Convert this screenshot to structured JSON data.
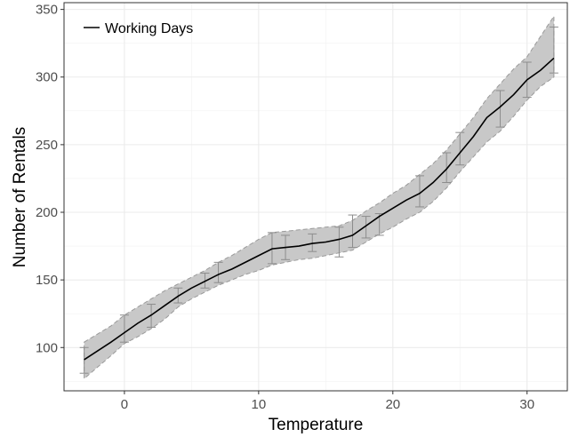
{
  "chart_data": {
    "type": "line",
    "xlabel": "Temperature",
    "ylabel": "Number of Rentals",
    "xlim": [
      -4.5,
      33
    ],
    "ylim": [
      68,
      355
    ],
    "x_ticks": [
      0,
      10,
      20,
      30
    ],
    "y_ticks": [
      100,
      150,
      200,
      250,
      300,
      350
    ],
    "grid": true,
    "legend_position": "top-left",
    "series": [
      {
        "name": "Working Days",
        "color": "#000000",
        "x": [
          -3,
          -1,
          0,
          1,
          2,
          3,
          4,
          5,
          6,
          7,
          8,
          9,
          10,
          11,
          12,
          13,
          14,
          15,
          16,
          17,
          18,
          19,
          20,
          21,
          22,
          23,
          24,
          25,
          26,
          27,
          28,
          29,
          30,
          31,
          32
        ],
        "y": [
          91,
          104,
          111,
          118,
          124,
          131,
          138,
          144,
          149,
          154,
          158,
          163,
          168,
          173,
          174,
          175,
          177,
          178,
          180,
          183,
          190,
          197,
          203,
          209,
          214,
          222,
          232,
          244,
          256,
          270,
          278,
          287,
          298,
          305,
          314
        ],
        "band_lower": [
          77,
          94,
          103,
          108,
          114,
          121,
          130,
          136,
          141,
          146,
          150,
          154,
          157,
          161,
          163,
          165,
          166,
          168,
          170,
          172,
          178,
          184,
          189,
          195,
          200,
          208,
          218,
          230,
          241,
          252,
          260,
          271,
          283,
          293,
          300
        ],
        "band_upper": [
          104,
          116,
          124,
          130,
          136,
          142,
          147,
          152,
          157,
          163,
          168,
          174,
          180,
          185,
          186,
          187,
          188,
          189,
          190,
          194,
          201,
          207,
          214,
          220,
          228,
          236,
          246,
          258,
          270,
          284,
          295,
          306,
          315,
          330,
          345
        ],
        "error_bars": [
          {
            "x": -3,
            "lo": 81,
            "hi": 100
          },
          {
            "x": 0,
            "lo": 104,
            "hi": 124
          },
          {
            "x": 2,
            "lo": 115,
            "hi": 132
          },
          {
            "x": 4,
            "lo": 133,
            "hi": 144
          },
          {
            "x": 6,
            "lo": 144,
            "hi": 155
          },
          {
            "x": 7,
            "lo": 148,
            "hi": 163
          },
          {
            "x": 11,
            "lo": 162,
            "hi": 185
          },
          {
            "x": 12,
            "lo": 165,
            "hi": 183
          },
          {
            "x": 14,
            "lo": 171,
            "hi": 184
          },
          {
            "x": 16,
            "lo": 167,
            "hi": 189
          },
          {
            "x": 17,
            "lo": 174,
            "hi": 198
          },
          {
            "x": 18,
            "lo": 181,
            "hi": 197
          },
          {
            "x": 19,
            "lo": 183,
            "hi": 199
          },
          {
            "x": 22,
            "lo": 204,
            "hi": 227
          },
          {
            "x": 24,
            "lo": 222,
            "hi": 244
          },
          {
            "x": 25,
            "lo": 235,
            "hi": 259
          },
          {
            "x": 28,
            "lo": 263,
            "hi": 290
          },
          {
            "x": 30,
            "lo": 285,
            "hi": 311
          },
          {
            "x": 32,
            "lo": 303,
            "hi": 337
          }
        ]
      }
    ]
  }
}
